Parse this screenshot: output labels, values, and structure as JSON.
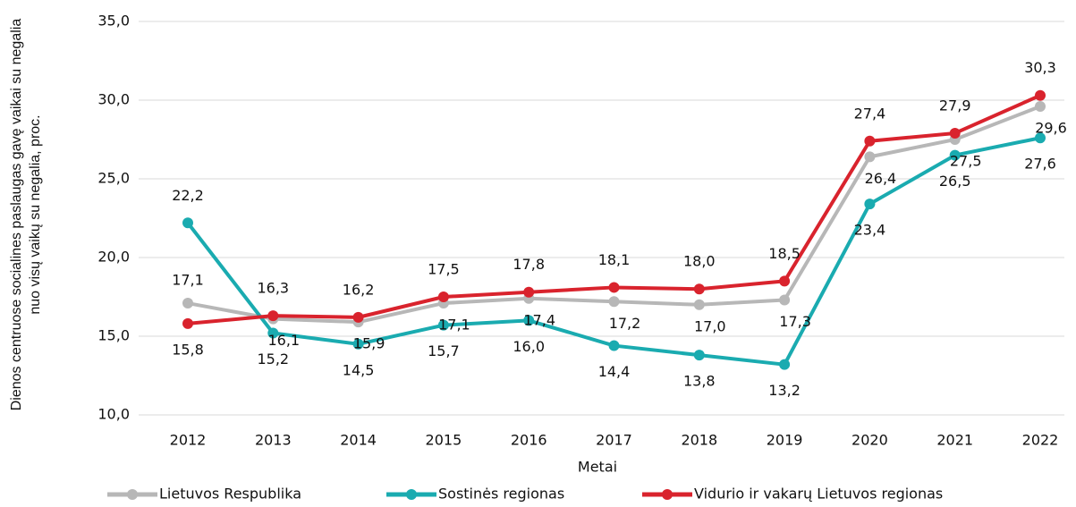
{
  "chart_data": {
    "type": "line",
    "y_label": "Dienos centruose socialines paslaugas gavę vaikai su negalia nuo visų vaikų su negalia, proc.",
    "x_label": "Metai",
    "categories": [
      "2012",
      "2013",
      "2014",
      "2015",
      "2016",
      "2017",
      "2018",
      "2019",
      "2020",
      "2021",
      "2022"
    ],
    "series": [
      {
        "name": "Lietuvos Respublika",
        "color": "#b7b7b7",
        "values": [
          17.1,
          16.1,
          15.9,
          17.1,
          17.4,
          17.2,
          17.0,
          17.3,
          26.4,
          27.5,
          29.6
        ],
        "value_labels": [
          "17,1",
          "16,1",
          "15,9",
          "17,1",
          "17,4",
          "17,2",
          "17,0",
          "17,3",
          "26,4",
          "27,5",
          "29,6"
        ]
      },
      {
        "name": "Sostinės regionas",
        "color": "#1aabb0",
        "values": [
          22.2,
          15.2,
          14.5,
          15.7,
          16.0,
          14.4,
          13.8,
          13.2,
          23.4,
          26.5,
          27.6
        ],
        "value_labels": [
          "22,2",
          "15,2",
          "14,5",
          "15,7",
          "16,0",
          "14,4",
          "13,8",
          "13,2",
          "23,4",
          "26,5",
          "27,6"
        ]
      },
      {
        "name": "Vidurio ir vakarų Lietuvos regionas",
        "color": "#d9232d",
        "values": [
          15.8,
          16.3,
          16.2,
          17.5,
          17.8,
          18.1,
          18.0,
          18.5,
          27.4,
          27.9,
          30.3
        ],
        "value_labels": [
          "15,8",
          "16,3",
          "16,2",
          "17,5",
          "17,8",
          "18,1",
          "18,0",
          "18,5",
          "27,4",
          "27,9",
          "30,3"
        ]
      }
    ],
    "ylim": [
      10,
      35
    ],
    "yticks": [
      {
        "value": 10,
        "label": "10,0"
      },
      {
        "value": 15,
        "label": "15,0"
      },
      {
        "value": 20,
        "label": "20,0"
      },
      {
        "value": 25,
        "label": "25,0"
      },
      {
        "value": 30,
        "label": "30,0"
      },
      {
        "value": 35,
        "label": "35,0"
      }
    ],
    "grid": true,
    "legend": "bottom"
  }
}
